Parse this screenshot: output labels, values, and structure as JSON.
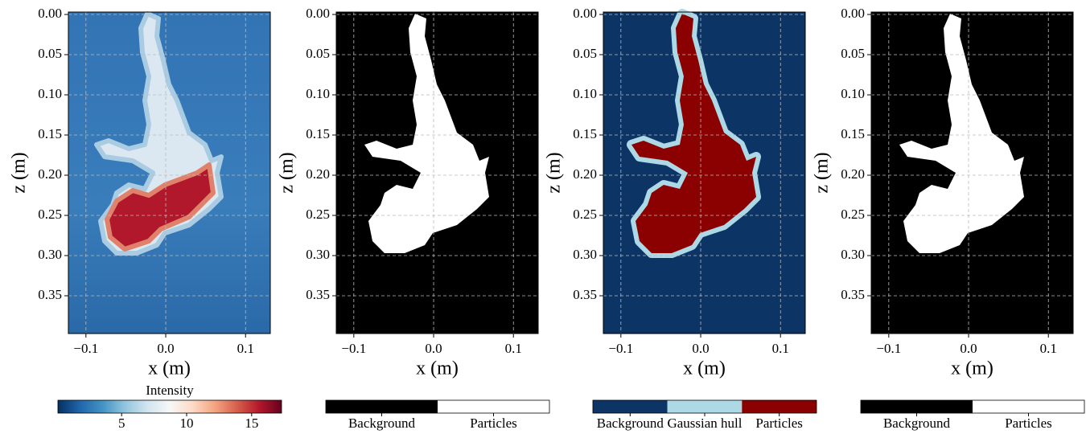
{
  "chart_data": [
    {
      "type": "image",
      "xlabel": "x (m)",
      "ylabel": "z (m)",
      "xlim": [
        -0.122,
        0.131
      ],
      "ylim": [
        0.397,
        -0.003
      ],
      "xticks": [
        {
          "value": -0.1,
          "label": "−0.1"
        },
        {
          "value": 0,
          "label": "0.0"
        },
        0.1
      ],
      "yticks": [
        {
          "value": 0,
          "label": "0.00"
        },
        0.05,
        {
          "value": 0.1,
          "label": "0.10"
        },
        0.15,
        {
          "value": 0.2,
          "label": "0.20"
        },
        0.25,
        {
          "value": 0.3,
          "label": "0.30"
        },
        0.35
      ],
      "grid": true,
      "colorbar": {
        "label": "Intensity",
        "colormap": "RdBu_r",
        "lim": [
          0.1,
          17.3
        ],
        "ticks": [
          5,
          10,
          15
        ]
      }
    },
    {
      "type": "image",
      "xlabel": "x (m)",
      "ylabel": "z (m)",
      "xlim": [
        -0.122,
        0.131
      ],
      "ylim": [
        0.397,
        -0.003
      ],
      "xticks": [
        {
          "value": -0.1,
          "label": "−0.1"
        },
        {
          "value": 0,
          "label": "0.0"
        },
        0.1
      ],
      "yticks": [
        {
          "value": 0,
          "label": "0.00"
        },
        0.05,
        {
          "value": 0.1,
          "label": "0.10"
        },
        0.15,
        {
          "value": 0.2,
          "label": "0.20"
        },
        0.25,
        {
          "value": 0.3,
          "label": "0.30"
        },
        0.35
      ],
      "grid": true,
      "colorbar": {
        "categories": [
          "Background",
          "Particles"
        ],
        "colors": [
          "#000000",
          "#ffffff"
        ]
      }
    },
    {
      "type": "image",
      "xlabel": "x (m)",
      "ylabel": "z (m)",
      "xlim": [
        -0.122,
        0.131
      ],
      "ylim": [
        0.397,
        -0.003
      ],
      "xticks": [
        {
          "value": -0.1,
          "label": "−0.1"
        },
        {
          "value": 0,
          "label": "0.0"
        },
        0.1
      ],
      "yticks": [
        {
          "value": 0,
          "label": "0.00"
        },
        0.05,
        {
          "value": 0.1,
          "label": "0.10"
        },
        0.15,
        {
          "value": 0.2,
          "label": "0.20"
        },
        0.25,
        {
          "value": 0.3,
          "label": "0.30"
        },
        0.35
      ],
      "grid": true,
      "colorbar": {
        "categories": [
          "Background",
          "Gaussian hull",
          "Particles"
        ],
        "colors": [
          "#0c3566",
          "#add8e6",
          "#8b0000"
        ]
      }
    },
    {
      "type": "image",
      "xlabel": "x (m)",
      "ylabel": "z (m)",
      "xlim": [
        -0.122,
        0.131
      ],
      "ylim": [
        0.397,
        -0.003
      ],
      "xticks": [
        {
          "value": -0.1,
          "label": "−0.1"
        },
        {
          "value": 0,
          "label": "0.0"
        },
        0.1
      ],
      "yticks": [
        {
          "value": 0,
          "label": "0.00"
        },
        0.05,
        {
          "value": 0.1,
          "label": "0.10"
        },
        0.15,
        {
          "value": 0.2,
          "label": "0.20"
        },
        0.25,
        {
          "value": 0.3,
          "label": "0.30"
        },
        0.35
      ],
      "grid": true,
      "colorbar": {
        "categories": [
          "Background",
          "Particles"
        ],
        "colors": [
          "#000000",
          "#ffffff"
        ]
      }
    }
  ]
}
